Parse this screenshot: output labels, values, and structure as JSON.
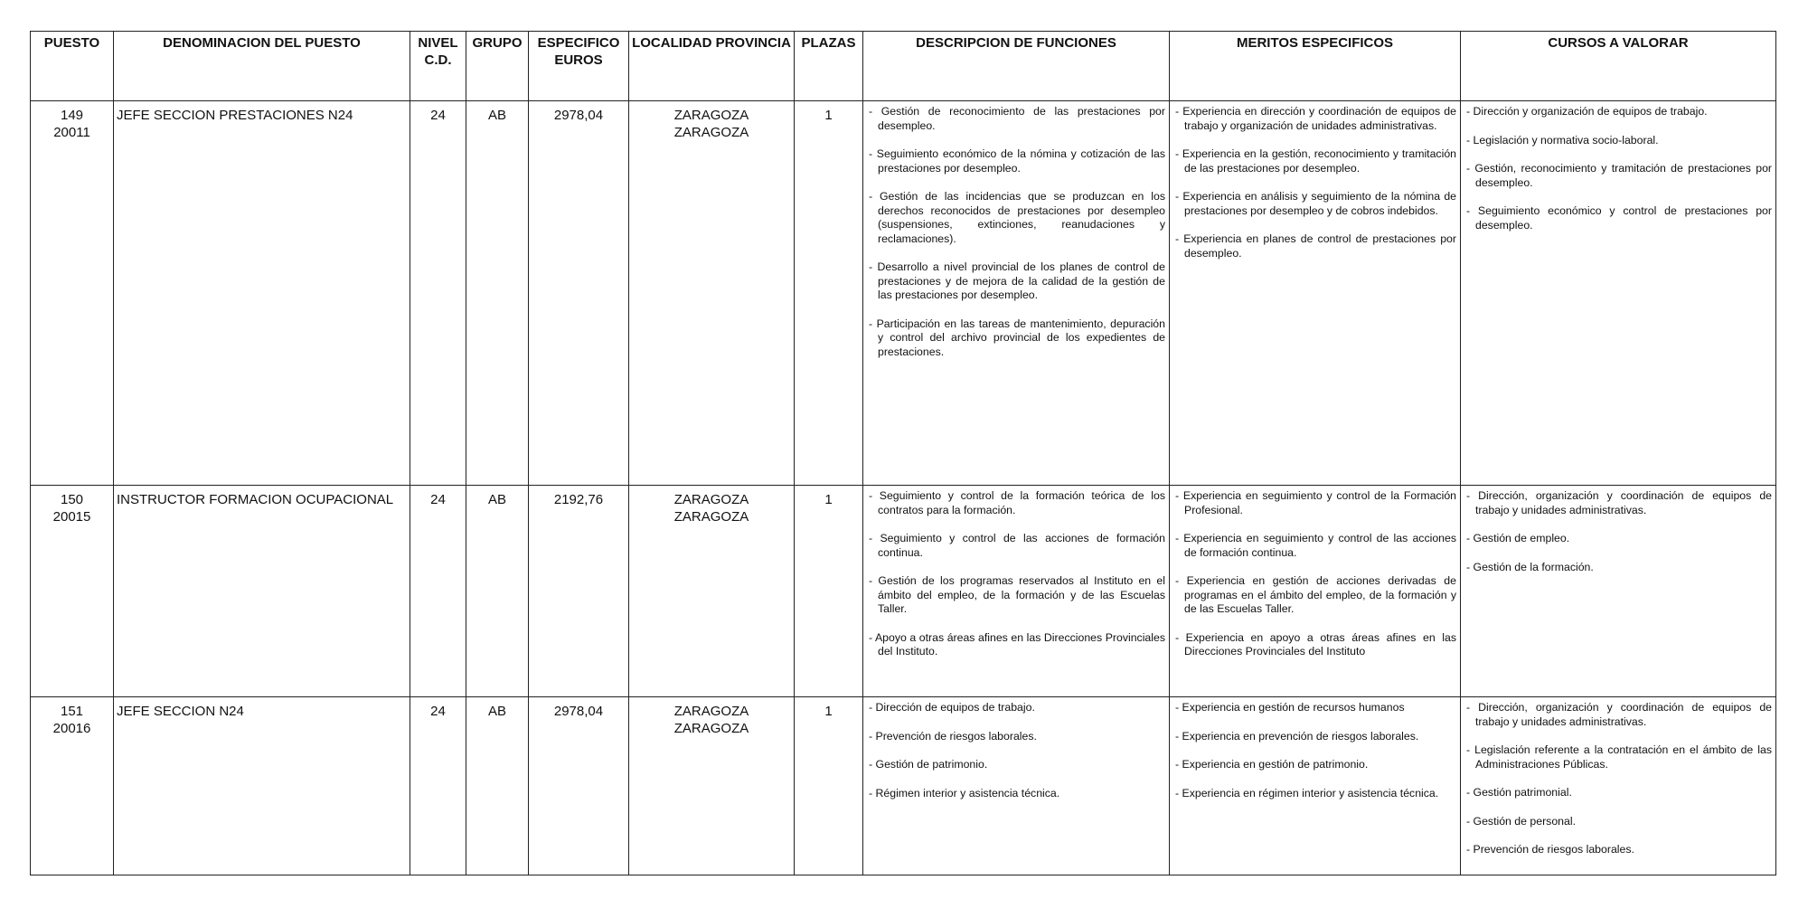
{
  "headers": [
    "PUESTO",
    "DENOMINACION DEL PUESTO",
    "NIVEL C.D.",
    "GRUPO",
    "ESPECIFICO EUROS",
    "LOCALIDAD PROVINCIA",
    "PLAZAS",
    "DESCRIPCION DE FUNCIONES",
    "MERITOS ESPECIFICOS",
    "CURSOS A VALORAR"
  ],
  "rows": [
    {
      "puesto": "149",
      "codigo": "20011",
      "denominacion": "JEFE SECCION PRESTACIONES N24",
      "nivel": "24",
      "grupo": "AB",
      "especifico": "2978,04",
      "localidad": "ZARAGOZA",
      "provincia": "ZARAGOZA",
      "plazas": "1",
      "funciones": [
        "- Gestión de reconocimiento de las prestaciones por desempleo.",
        "- Seguimiento económico de la nómina y cotización de las prestaciones por desempleo.",
        "- Gestión de las incidencias que se produzcan en los derechos reconocidos de prestaciones por desempleo (suspensiones, extinciones, reanudaciones y reclamaciones).",
        "- Desarrollo a nivel provincial de los planes de control de prestaciones y de mejora de la calidad de la gestión de las prestaciones por desempleo.",
        "- Participación en las tareas de mantenimiento, depuración y control del archivo provincial de los expedientes de prestaciones."
      ],
      "meritos": [
        "- Experiencia en dirección y coordinación de equipos de trabajo y organización de unidades administrativas.",
        "- Experiencia en la gestión, reconocimiento y tramitación de las prestaciones por desempleo.",
        "- Experiencia en análisis y seguimiento de la nómina de prestaciones por desempleo y de cobros indebidos.",
        "- Experiencia en planes de control de prestaciones por desempleo."
      ],
      "cursos": [
        "- Dirección y organización de equipos de trabajo.",
        "- Legislación y normativa socio-laboral.",
        "- Gestión, reconocimiento y tramitación de prestaciones por desempleo.",
        "- Seguimiento económico y control de prestaciones por desempleo."
      ]
    },
    {
      "puesto": "150",
      "codigo": "20015",
      "denominacion": "INSTRUCTOR FORMACION OCUPACIONAL",
      "nivel": "24",
      "grupo": "AB",
      "especifico": "2192,76",
      "localidad": "ZARAGOZA",
      "provincia": "ZARAGOZA",
      "plazas": "1",
      "funciones": [
        "- Seguimiento y control de la formación teórica de los contratos para la formación.",
        "- Seguimiento y control de las acciones de formación continua.",
        "- Gestión de los programas reservados al Instituto en el ámbito del empleo, de la formación y de las Escuelas Taller.",
        "- Apoyo a otras áreas afines en las Direcciones Provinciales del Instituto."
      ],
      "meritos": [
        "- Experiencia en seguimiento y control de la Formación Profesional.",
        "- Experiencia en seguimiento y control de las acciones de formación continua.",
        "- Experiencia en gestión de acciones derivadas de programas en el ámbito del empleo, de la formación y de las Escuelas Taller.",
        "- Experiencia en apoyo a otras áreas afines en las Direcciones Provinciales del Instituto"
      ],
      "cursos": [
        "- Dirección, organización y coordinación de equipos de trabajo y unidades administrativas.",
        "- Gestión de empleo.",
        "- Gestión de la formación."
      ]
    },
    {
      "puesto": "151",
      "codigo": "20016",
      "denominacion": "JEFE SECCION N24",
      "nivel": "24",
      "grupo": "AB",
      "especifico": "2978,04",
      "localidad": "ZARAGOZA",
      "provincia": "ZARAGOZA",
      "plazas": "1",
      "funciones": [
        "- Dirección de equipos de trabajo.",
        "- Prevención de riesgos laborales.",
        "- Gestión de patrimonio.",
        "- Régimen interior y asistencia técnica."
      ],
      "meritos": [
        "- Experiencia en gestión de recursos humanos",
        "- Experiencia en prevención de riesgos laborales.",
        "- Experiencia en gestión de patrimonio.",
        "- Experiencia en régimen interior y asistencia técnica."
      ],
      "cursos": [
        "- Dirección, organización y coordinación de equipos de trabajo y unidades administrativas.",
        "- Legislación referente a la contratación en el ámbito de las Administraciones Públicas.",
        "- Gestión patrimonial.",
        "- Gestión de personal.",
        "- Prevención de riesgos laborales."
      ]
    }
  ]
}
